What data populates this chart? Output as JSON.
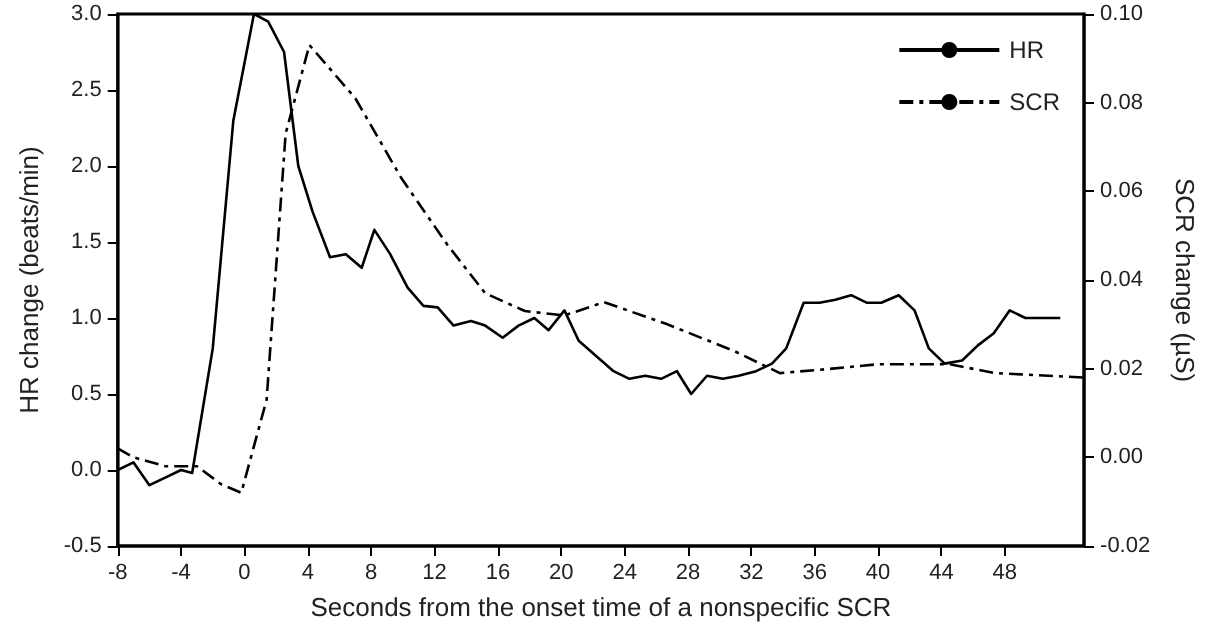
{
  "chart_data": {
    "type": "line",
    "xlabel": "Seconds from the onset time of a nonspecific SCR",
    "ylabel": "HR change (beats/min)",
    "y2label": "SCR change (µS)",
    "xlim": [
      -8,
      53
    ],
    "xticks": [
      -8,
      -4,
      0,
      4,
      8,
      12,
      16,
      20,
      24,
      28,
      32,
      36,
      40,
      44,
      48
    ],
    "ylim": [
      -0.5,
      3.0
    ],
    "yticks": [
      -0.5,
      {
        "value": 0,
        "label": "0.0"
      },
      0.5,
      {
        "value": 1,
        "label": "1.0"
      },
      1.5,
      {
        "value": 2,
        "label": "2.0"
      },
      2.5,
      {
        "value": 3,
        "label": "3.0"
      }
    ],
    "y2lim": [
      -0.02,
      0.1
    ],
    "y2ticks": [
      -0.02,
      {
        "value": 0,
        "label": "0.00"
      },
      0.02,
      0.04,
      0.06,
      0.08,
      {
        "value": 0.1,
        "label": "0.10"
      }
    ],
    "grid": false,
    "legend": "top right",
    "marker": "none",
    "series": [
      {
        "name": "HR",
        "color": "#000000",
        "line_style": "solid",
        "x": [
          -8,
          -7,
          -6,
          -5,
          -4,
          -3.3,
          -2,
          -0.7,
          0.6,
          1.5,
          2.5,
          3.4,
          4.3,
          5.4,
          6.4,
          7.4,
          8.2,
          9.2,
          10.3,
          11.3,
          12.2,
          13.2,
          14.3,
          15.2,
          16.3,
          17.3,
          18.3,
          19.2,
          20.2,
          21.1,
          22.2,
          23.3,
          24.3,
          25.3,
          26.3,
          27.3,
          28.2,
          29.2,
          30.2,
          31.2,
          32.3,
          33.3,
          34.2,
          35.3,
          36.3,
          37.3,
          38.3,
          39.3,
          40.2,
          41.3,
          42.3,
          43.2,
          44.2,
          45.3,
          46.3,
          47.3,
          48.3,
          49.3,
          51.5
        ],
        "values": [
          0,
          0.05,
          -0.1,
          -0.05,
          0,
          -0.02,
          0.8,
          2.3,
          3.0,
          2.95,
          2.75,
          2.0,
          1.7,
          1.4,
          1.42,
          1.33,
          1.58,
          1.42,
          1.2,
          1.08,
          1.07,
          0.95,
          0.98,
          0.95,
          0.87,
          0.95,
          1.0,
          0.92,
          1.05,
          0.85,
          0.75,
          0.65,
          0.6,
          0.62,
          0.6,
          0.65,
          0.5,
          0.62,
          0.6,
          0.62,
          0.65,
          0.7,
          0.8,
          1.1,
          1.1,
          1.12,
          1.15,
          1.1,
          1.1,
          1.15,
          1.05,
          0.8,
          0.7,
          0.72,
          0.82,
          0.9,
          1.05,
          1.0,
          1.0
        ]
      },
      {
        "name": "SCR",
        "color": "#000000",
        "line_style": "dashdot",
        "axis": "y2",
        "x": [
          -8,
          -7,
          -5,
          -3,
          -1.5,
          -0.2,
          1.4,
          2.6,
          4.1,
          7,
          9.9,
          12.8,
          15.2,
          17.7,
          20.2,
          22.7,
          26.7,
          30.9,
          33.8,
          37.1,
          40,
          44.5,
          47.4,
          53
        ],
        "values": [
          0.002,
          0.0,
          -0.002,
          -0.002,
          -0.006,
          -0.008,
          0.013,
          0.073,
          0.093,
          0.081,
          0.063,
          0.048,
          0.037,
          0.033,
          0.032,
          0.035,
          0.03,
          0.024,
          0.019,
          0.02,
          0.021,
          0.021,
          0.019,
          0.018
        ]
      }
    ]
  }
}
